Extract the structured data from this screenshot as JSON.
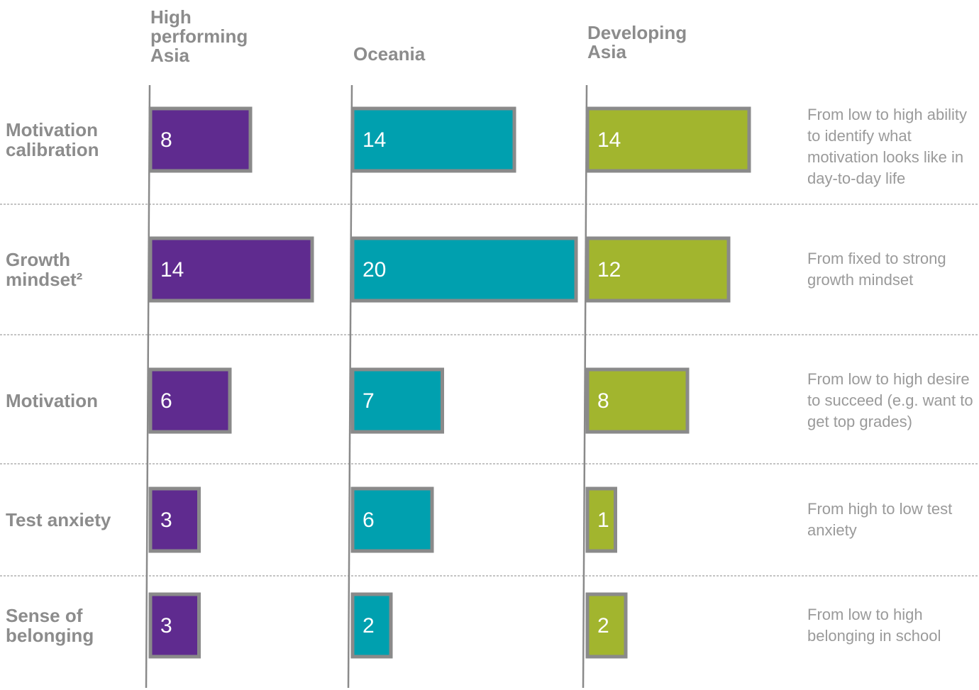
{
  "chart_data": {
    "type": "bar",
    "categories": [
      "Motivation calibration",
      "Growth mindset²",
      "Motivation",
      "Test anxiety",
      "Sense of belonging"
    ],
    "series": [
      {
        "name": "High performing Asia",
        "color": "#5f2b8f",
        "values": [
          8,
          14,
          6,
          3,
          3
        ]
      },
      {
        "name": "Oceania",
        "color": "#00a0af",
        "values": [
          14,
          20,
          7,
          6,
          2
        ]
      },
      {
        "name": "Developing Asia",
        "color": "#a2b52e",
        "values": [
          14,
          12,
          8,
          1,
          2
        ]
      }
    ],
    "annotations": [
      "From low to high ability to identify what motivation looks like in day-to-day life",
      "From fixed to strong growth mindset",
      "From low to high desire to succeed (e.g. want to get top grades)",
      "From high to low test anxiety",
      "From low to high belonging in school"
    ]
  }
}
